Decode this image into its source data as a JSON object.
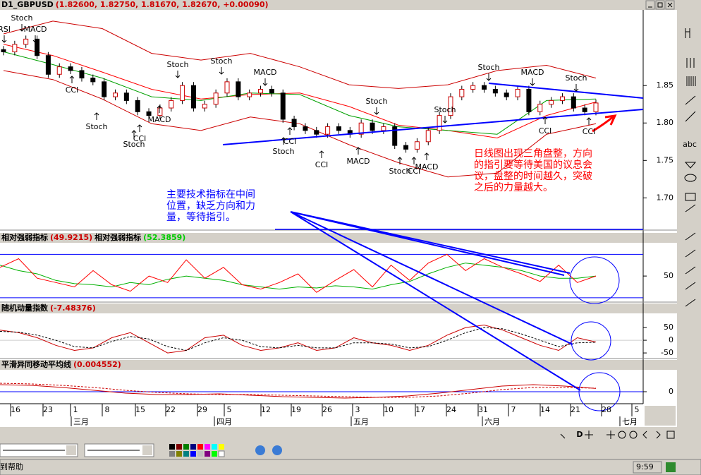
{
  "price": {
    "symbol": "D1_GBPUSD",
    "ohlc": "(1.82600, 1.82750, 1.81670, 1.82670, +0.00090)",
    "ylim": [
      1.657,
      1.951
    ],
    "yticks": [
      1.85,
      {
        "value": 1.8,
        "label": "1.80"
      },
      1.75,
      {
        "value": 1.7,
        "label": "1.70"
      }
    ],
    "closes": [
      1.895,
      1.905,
      1.912,
      1.89,
      1.865,
      1.875,
      1.87,
      1.86,
      1.855,
      1.835,
      1.84,
      1.83,
      1.815,
      1.81,
      1.82,
      1.83,
      1.85,
      1.82,
      1.825,
      1.84,
      1.855,
      1.835,
      1.84,
      1.845,
      1.84,
      1.805,
      1.795,
      1.79,
      1.785,
      1.795,
      1.79,
      1.785,
      1.8,
      1.79,
      1.795,
      1.77,
      1.765,
      1.775,
      1.79,
      1.81,
      1.835,
      1.845,
      1.85,
      1.845,
      1.84,
      1.835,
      1.845,
      1.815,
      1.825,
      1.83,
      1.835,
      1.82,
      1.815,
      1.8267
    ],
    "band_upper": [
      1.919,
      1.936,
      1.926,
      1.893,
      1.884,
      1.893,
      1.875,
      1.851,
      1.846,
      1.851,
      1.87,
      1.877,
      1.86
    ],
    "band_lower": [
      1.87,
      1.858,
      1.832,
      1.799,
      1.79,
      1.808,
      1.799,
      1.771,
      1.747,
      1.728,
      1.733,
      1.785,
      1.799
    ],
    "ma_red": [
      1.905,
      1.89,
      1.868,
      1.845,
      1.832,
      1.838,
      1.84,
      1.822,
      1.797,
      1.79,
      1.78,
      1.81,
      1.828
    ],
    "ma_green": [
      1.895,
      1.878,
      1.86,
      1.835,
      1.83,
      1.84,
      1.838,
      1.81,
      1.795,
      1.79,
      1.785,
      1.83,
      1.832
    ]
  },
  "signals": [
    "RSI",
    "Stoch",
    "MACD",
    "CCI",
    "Stoch",
    "CCI",
    "Stoch",
    "MACD",
    "Stoch",
    "Stoch",
    "MACD",
    "CCI",
    "Stoch",
    "CCI",
    "MACD",
    "Stoch",
    "Stoch",
    "CCI",
    "MACD",
    "Stoch",
    "Stoch",
    "MACD",
    "Stoch",
    "CCI",
    "CCI"
  ],
  "note_red": [
    "日线图出现三角盘整，方向",
    "的指引要等待美国的议息会",
    "议，盘整的时间越久，突破",
    "之后的力量越大。"
  ],
  "note_blue": [
    "主要技术指标在中间",
    "位置，缺乏方向和力",
    "量，等待指引。"
  ],
  "rsi": {
    "title": "相对强弱指标",
    "value_label": "(49.9215)",
    "title2": "相对强弱指标",
    "value_label2": "(52.3859)",
    "ylim": [
      26,
      80
    ],
    "yticks": [
      50
    ],
    "levels": [
      70,
      30
    ],
    "red": [
      58,
      66,
      48,
      44,
      40,
      55,
      42,
      36,
      50,
      44,
      65,
      48,
      58,
      42,
      38,
      44,
      52,
      35,
      46,
      56,
      40,
      60,
      46,
      62,
      70,
      55,
      66,
      58,
      52,
      45,
      60,
      44,
      50
    ],
    "green": [
      60,
      55,
      52,
      46,
      43,
      42,
      40,
      44,
      42,
      47,
      50,
      48,
      46,
      42,
      40,
      38,
      40,
      39,
      41,
      40,
      38,
      42,
      45,
      52,
      58,
      62,
      60,
      58,
      55,
      50,
      48,
      48,
      50
    ]
  },
  "stoch": {
    "title": "随机动量指数",
    "value_label": "(-7.48376)",
    "ylim": [
      -72,
      103
    ],
    "yticks": [
      50,
      0,
      -50
    ],
    "main": [
      40,
      30,
      10,
      -20,
      -40,
      -30,
      10,
      30,
      -10,
      -50,
      -40,
      10,
      20,
      -20,
      -40,
      -30,
      -10,
      -40,
      -30,
      10,
      -10,
      -20,
      -40,
      -20,
      20,
      50,
      60,
      40,
      10,
      -20,
      -40,
      10,
      -7
    ],
    "signal": [
      35,
      32,
      20,
      0,
      -25,
      -30,
      -5,
      15,
      5,
      -25,
      -40,
      -10,
      10,
      0,
      -25,
      -30,
      -20,
      -30,
      -30,
      -10,
      -10,
      -15,
      -30,
      -25,
      0,
      30,
      50,
      45,
      25,
      0,
      -25,
      -10,
      -8
    ]
  },
  "macd": {
    "title": "平滑异同移动平均线",
    "value_label": "(0.004552)",
    "ylim": [
      -0.017,
      0.03
    ],
    "yticks": [
      0
    ],
    "main": [
      0.01,
      0.009,
      0.006,
      0.002,
      -0.002,
      -0.004,
      -0.004,
      -0.003,
      -0.005,
      -0.007,
      -0.008,
      -0.009,
      -0.008,
      -0.006,
      -0.002,
      0.003,
      0.008,
      0.01,
      0.008,
      0.0046
    ],
    "signal": [
      0.012,
      0.011,
      0.009,
      0.006,
      0.002,
      -0.001,
      -0.003,
      -0.004,
      -0.004,
      -0.005,
      -0.006,
      -0.007,
      -0.008,
      -0.008,
      -0.006,
      -0.002,
      0.003,
      0.006,
      0.006,
      0.005
    ]
  },
  "dates": [
    "16",
    "23",
    "1",
    "8",
    "15",
    "22",
    "29",
    "5",
    "12",
    "19",
    "26",
    "3",
    "10",
    "17",
    "24",
    "31",
    "7",
    "14",
    "21",
    "28",
    "5"
  ],
  "months": [
    "三月",
    "四月",
    "五月",
    "六月",
    "七月"
  ],
  "status": {
    "help": "到帮助",
    "time": "9:59"
  }
}
